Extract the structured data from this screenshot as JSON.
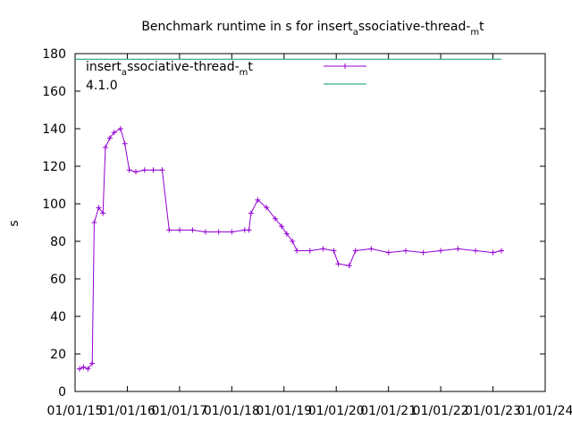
{
  "chart_data": {
    "type": "line",
    "title_parts": {
      "a": "Benchmark runtime in s for insert",
      "sub1": "a",
      "b": "ssociative-thread-",
      "sub2": "m",
      "c": "t"
    },
    "ylabel": "s",
    "xlabel": "",
    "xlim": [
      "2015-01-01",
      "2024-01-01"
    ],
    "ylim": [
      0,
      180
    ],
    "y_ticks": [
      "0",
      "20",
      "40",
      "60",
      "80",
      "100",
      "120",
      "140",
      "160",
      "180"
    ],
    "x_ticks": [
      "01/01/15",
      "01/01/16",
      "01/01/17",
      "01/01/18",
      "01/01/19",
      "01/01/20",
      "01/01/21",
      "01/01/22",
      "01/01/23",
      "01/01/24"
    ],
    "grid": false,
    "legend_position": "top-left",
    "series": [
      {
        "name_parts": {
          "a": "insert",
          "sub1": "a",
          "b": "ssociative-thread-",
          "sub2": "m",
          "c": "t"
        },
        "color": "#9400d3",
        "points": [
          [
            "2015-02-01",
            12
          ],
          [
            "2015-03-01",
            13
          ],
          [
            "2015-04-01",
            12
          ],
          [
            "2015-05-01",
            15
          ],
          [
            "2015-05-15",
            90
          ],
          [
            "2015-06-15",
            98
          ],
          [
            "2015-07-15",
            95
          ],
          [
            "2015-08-01",
            130
          ],
          [
            "2015-09-01",
            135
          ],
          [
            "2015-10-01",
            138
          ],
          [
            "2015-11-15",
            140
          ],
          [
            "2015-12-15",
            132
          ],
          [
            "2016-01-15",
            118
          ],
          [
            "2016-03-01",
            117
          ],
          [
            "2016-05-01",
            118
          ],
          [
            "2016-07-01",
            118
          ],
          [
            "2016-09-01",
            118
          ],
          [
            "2016-10-20",
            86
          ],
          [
            "2017-01-01",
            86
          ],
          [
            "2017-04-01",
            86
          ],
          [
            "2017-07-01",
            85
          ],
          [
            "2017-10-01",
            85
          ],
          [
            "2018-01-01",
            85
          ],
          [
            "2018-04-01",
            86
          ],
          [
            "2018-05-01",
            86
          ],
          [
            "2018-05-15",
            95
          ],
          [
            "2018-07-01",
            102
          ],
          [
            "2018-09-01",
            98
          ],
          [
            "2018-11-01",
            92
          ],
          [
            "2018-12-15",
            88
          ],
          [
            "2019-01-20",
            84
          ],
          [
            "2019-03-01",
            80
          ],
          [
            "2019-04-01",
            75
          ],
          [
            "2019-07-01",
            75
          ],
          [
            "2019-10-01",
            76
          ],
          [
            "2019-12-15",
            75
          ],
          [
            "2020-01-15",
            68
          ],
          [
            "2020-04-01",
            67
          ],
          [
            "2020-05-15",
            75
          ],
          [
            "2020-09-01",
            76
          ],
          [
            "2021-01-01",
            74
          ],
          [
            "2021-05-01",
            75
          ],
          [
            "2021-09-01",
            74
          ],
          [
            "2022-01-01",
            75
          ],
          [
            "2022-05-01",
            76
          ],
          [
            "2022-09-01",
            75
          ],
          [
            "2023-01-01",
            74
          ],
          [
            "2023-03-01",
            75
          ]
        ]
      },
      {
        "name": "4.1.0",
        "color": "#009e73",
        "points": [
          [
            "2015-01-01",
            177
          ],
          [
            "2023-03-01",
            177
          ]
        ]
      }
    ]
  }
}
